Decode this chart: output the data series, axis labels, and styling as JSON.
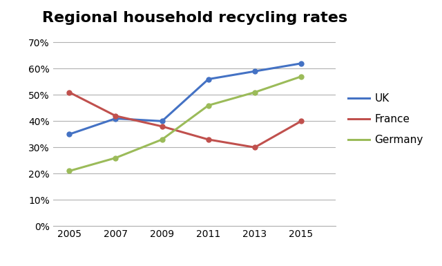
{
  "title": "Regional household recycling rates",
  "years": [
    2005,
    2007,
    2009,
    2011,
    2013,
    2015
  ],
  "series": {
    "UK": {
      "values": [
        0.35,
        0.41,
        0.4,
        0.56,
        0.59,
        0.62
      ],
      "color": "#4472C4",
      "marker": "o"
    },
    "France": {
      "values": [
        0.51,
        0.42,
        0.38,
        0.33,
        0.3,
        0.4
      ],
      "color": "#C0504D",
      "marker": "o"
    },
    "Germany": {
      "values": [
        0.21,
        0.26,
        0.33,
        0.46,
        0.51,
        0.57
      ],
      "color": "#9BBB59",
      "marker": "o"
    }
  },
  "ylim": [
    0.0,
    0.74
  ],
  "yticks": [
    0.0,
    0.1,
    0.2,
    0.3,
    0.4,
    0.5,
    0.6,
    0.7
  ],
  "title_fontsize": 16,
  "legend_fontsize": 11,
  "tick_fontsize": 10,
  "linewidth": 2.2,
  "markersize": 5,
  "background_color": "#ffffff",
  "grid_color": "#b0b0b0",
  "xlim_left": 2004.3,
  "xlim_right": 2016.5
}
